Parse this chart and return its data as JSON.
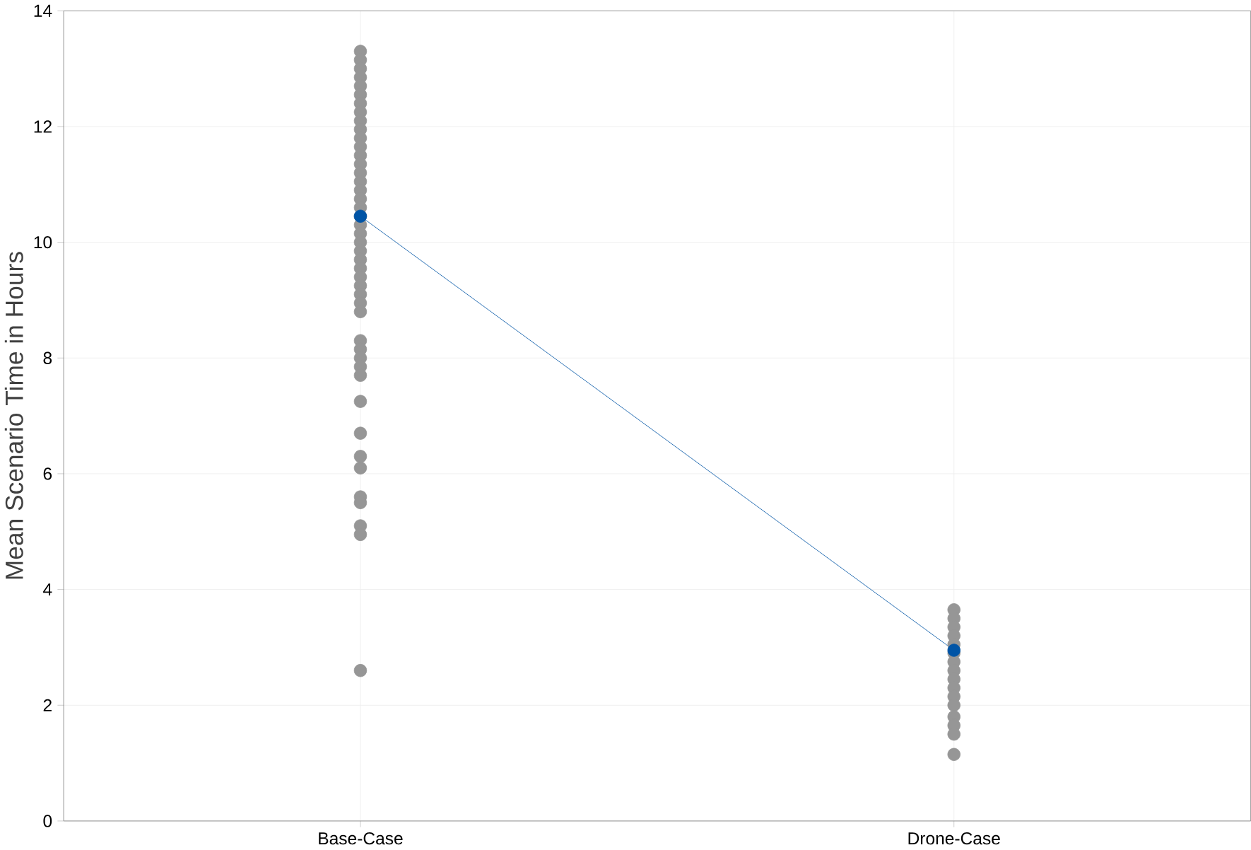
{
  "chart_data": {
    "type": "scatter",
    "ylabel": "Mean Scenario Time in Hours",
    "categories": [
      "Base-Case",
      "Drone-Case"
    ],
    "ylim": [
      0,
      14
    ],
    "yticks": [
      0,
      2,
      4,
      6,
      8,
      10,
      12,
      14
    ],
    "grid": true,
    "series": [
      {
        "color": "#969696",
        "marker": "circle",
        "x": [
          "Base-Case",
          "Base-Case",
          "Base-Case",
          "Base-Case",
          "Base-Case",
          "Base-Case",
          "Base-Case",
          "Base-Case",
          "Base-Case",
          "Base-Case",
          "Base-Case",
          "Base-Case",
          "Base-Case",
          "Base-Case",
          "Base-Case",
          "Base-Case",
          "Base-Case",
          "Base-Case",
          "Base-Case",
          "Base-Case",
          "Base-Case",
          "Base-Case",
          "Base-Case",
          "Base-Case",
          "Base-Case",
          "Base-Case",
          "Base-Case",
          "Base-Case",
          "Base-Case",
          "Base-Case",
          "Base-Case",
          "Base-Case",
          "Base-Case",
          "Base-Case",
          "Base-Case",
          "Base-Case",
          "Base-Case",
          "Base-Case",
          "Base-Case",
          "Base-Case",
          "Base-Case",
          "Base-Case",
          "Base-Case",
          "Base-Case",
          "Base-Case",
          "Drone-Case",
          "Drone-Case",
          "Drone-Case",
          "Drone-Case",
          "Drone-Case",
          "Drone-Case",
          "Drone-Case",
          "Drone-Case",
          "Drone-Case",
          "Drone-Case",
          "Drone-Case",
          "Drone-Case",
          "Drone-Case",
          "Drone-Case",
          "Drone-Case",
          "Drone-Case"
        ],
        "values": [
          13.3,
          13.15,
          13.0,
          12.85,
          12.7,
          12.55,
          12.4,
          12.25,
          12.1,
          11.95,
          11.8,
          11.65,
          11.5,
          11.35,
          11.2,
          11.05,
          10.9,
          10.75,
          10.6,
          10.45,
          10.3,
          10.15,
          10.0,
          9.85,
          9.7,
          9.55,
          9.4,
          9.25,
          9.1,
          8.95,
          8.8,
          8.3,
          8.15,
          8.0,
          7.85,
          7.7,
          7.25,
          6.7,
          6.3,
          6.1,
          5.6,
          5.5,
          5.1,
          4.95,
          2.6,
          3.65,
          3.5,
          3.35,
          3.2,
          3.05,
          2.9,
          2.75,
          2.6,
          2.45,
          2.3,
          2.15,
          2.0,
          1.8,
          1.65,
          1.5,
          1.15
        ]
      },
      {
        "type": "line",
        "color": "#0054a6",
        "marker": "circle",
        "line_style": "solid",
        "values": [
          10.45,
          2.95
        ]
      }
    ]
  }
}
